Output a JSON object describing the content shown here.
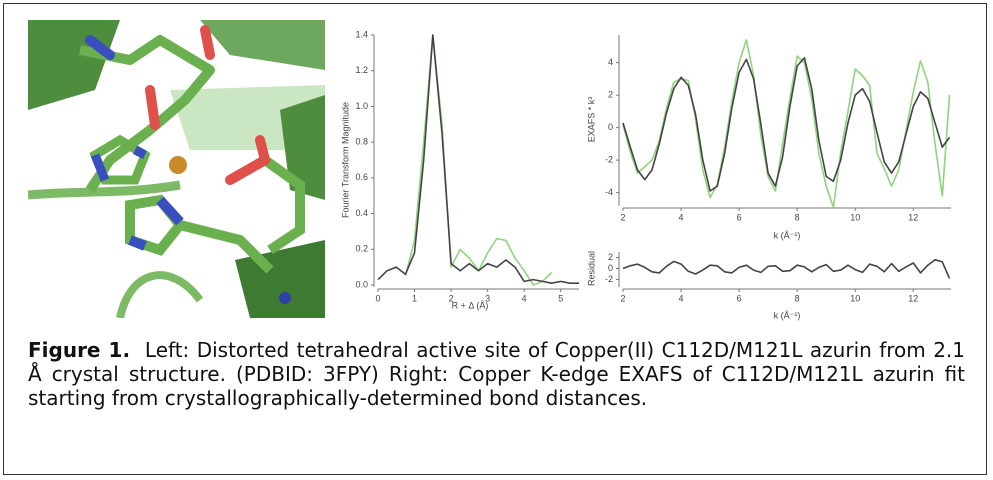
{
  "chart_data": [
    {
      "type": "line",
      "ylabel": "Fourier Transform Magnitude",
      "xlabel": "R + Δ (Å)",
      "x": [
        0,
        0.25,
        0.5,
        0.75,
        1,
        1.25,
        1.5,
        1.75,
        2,
        2.25,
        2.5,
        2.75,
        3,
        3.25,
        3.5,
        3.75,
        4,
        4.25,
        4.5,
        4.75,
        5,
        5.25,
        5.5
      ],
      "series": [
        {
          "color": "#8fd47c",
          "values": [
            null,
            null,
            null,
            0.05,
            0.25,
            0.8,
            1.4,
            0.9,
            0.1,
            0.2,
            0.15,
            0.08,
            0.18,
            0.26,
            0.25,
            0.15,
            0.08,
            0.0,
            0.02,
            0.07,
            null,
            null,
            null
          ]
        },
        {
          "color": "#444444",
          "values": [
            0.03,
            0.08,
            0.1,
            0.06,
            0.18,
            0.7,
            1.4,
            0.85,
            0.12,
            0.08,
            0.12,
            0.08,
            0.12,
            0.1,
            0.14,
            0.1,
            0.02,
            0.03,
            0.02,
            0.01,
            0.02,
            0.01,
            0.01
          ]
        }
      ],
      "xlim": [
        0,
        5.5
      ],
      "xticks": [
        0,
        1,
        2,
        3,
        4,
        5
      ],
      "ylim": [
        0,
        1.4
      ],
      "yticks": [
        {
          "value": 0,
          "label": "0.0"
        },
        {
          "value": 0.2,
          "label": "0.2"
        },
        {
          "value": 0.4,
          "label": "0.4"
        },
        {
          "value": 0.6,
          "label": "0.6"
        },
        {
          "value": 0.8,
          "label": "0.8"
        },
        {
          "value": 1,
          "label": "1.0"
        },
        {
          "value": 1.2,
          "label": "1.2"
        },
        {
          "value": 1.4,
          "label": "1.4"
        }
      ]
    },
    {
      "type": "line",
      "ylabel": "EXAFS * k³",
      "xlabel": "k (Å⁻¹)",
      "x": [
        2,
        2.25,
        2.5,
        2.75,
        3,
        3.25,
        3.5,
        3.75,
        4,
        4.25,
        4.5,
        4.75,
        5,
        5.25,
        5.5,
        5.75,
        6,
        6.25,
        6.5,
        6.75,
        7,
        7.25,
        7.5,
        7.75,
        8,
        8.25,
        8.5,
        8.75,
        9,
        9.25,
        9.5,
        9.75,
        10,
        10.25,
        10.5,
        10.75,
        11,
        11.25,
        11.5,
        11.75,
        12,
        12.25,
        12.5,
        12.75,
        13,
        13.25
      ],
      "series": [
        {
          "color": "#8fd47c",
          "values": [
            0.2,
            -1.5,
            -2.8,
            -2.4,
            -2.0,
            -0.8,
            1.2,
            2.8,
            3.0,
            2.9,
            0.5,
            -2.6,
            -4.3,
            -3.5,
            -1.2,
            1.6,
            4.0,
            5.4,
            3.2,
            -0.5,
            -3.0,
            -3.9,
            -1.0,
            1.8,
            4.4,
            4.0,
            1.8,
            -1.6,
            -3.6,
            -4.9,
            -1.5,
            1.0,
            3.6,
            3.2,
            2.6,
            -1.6,
            -2.5,
            -3.6,
            -2.6,
            -0.2,
            2.2,
            4.1,
            2.8,
            -1.0,
            -4.2,
            2.0
          ]
        },
        {
          "color": "#444444",
          "values": [
            0.3,
            -1.2,
            -2.6,
            -3.2,
            -2.6,
            -1.0,
            0.9,
            2.4,
            3.1,
            2.6,
            0.8,
            -2.0,
            -3.9,
            -3.6,
            -1.6,
            1.2,
            3.4,
            4.2,
            3.0,
            0.2,
            -2.8,
            -3.6,
            -1.8,
            1.3,
            3.8,
            4.3,
            2.4,
            -0.8,
            -3.0,
            -3.3,
            -2.0,
            0.3,
            2.0,
            2.4,
            1.6,
            -0.3,
            -2.1,
            -2.8,
            -2.1,
            -0.4,
            1.3,
            2.2,
            1.8,
            0.3,
            -1.2,
            -0.6
          ]
        }
      ],
      "xlim": [
        2,
        13.3
      ],
      "xticks": [
        2,
        4,
        6,
        8,
        10,
        12
      ],
      "ylim": [
        -4.7,
        5.7
      ],
      "yticks": [
        -4,
        -2,
        0,
        2,
        4
      ]
    },
    {
      "type": "line",
      "ylabel": "Residual",
      "xlabel": "k (Å⁻¹)",
      "x": [
        2,
        2.25,
        2.5,
        2.75,
        3,
        3.25,
        3.5,
        3.75,
        4,
        4.25,
        4.5,
        4.75,
        5,
        5.25,
        5.5,
        5.75,
        6,
        6.25,
        6.5,
        6.75,
        7,
        7.25,
        7.5,
        7.75,
        8,
        8.25,
        8.5,
        8.75,
        9,
        9.25,
        9.5,
        9.75,
        10,
        10.25,
        10.5,
        10.75,
        11,
        11.25,
        11.5,
        11.75,
        12,
        12.25,
        12.5,
        12.75,
        13,
        13.25
      ],
      "series": [
        {
          "color": "#444444",
          "values": [
            0,
            0.5,
            0.8,
            0.2,
            -0.6,
            -0.8,
            0.4,
            1.3,
            0.8,
            -0.5,
            -1.0,
            -0.3,
            0.6,
            0.5,
            -0.6,
            -0.8,
            0.2,
            0.6,
            -0.3,
            -0.7,
            0.4,
            0.5,
            -0.5,
            -0.4,
            0.6,
            0.3,
            -0.6,
            0.2,
            0.7,
            -0.5,
            -0.3,
            0.6,
            -0.2,
            -0.7,
            0.8,
            0.4,
            -0.6,
            0.9,
            -0.5,
            0.3,
            1.0,
            -0.8,
            0.6,
            1.6,
            1.2,
            -1.8
          ]
        }
      ],
      "xlim": [
        2,
        13.3
      ],
      "xticks": [
        2,
        4,
        6,
        8,
        10,
        12
      ],
      "ylim": [
        -3,
        3
      ],
      "yticks": [
        -2,
        0,
        2
      ]
    }
  ],
  "caption": {
    "label": "Figure 1.",
    "text": "Left: Distorted tetrahedral active site of Copper(II) C112D/M121L azurin from 2.1 Å crystal structure. (PDBID: 3FPY) Right: Copper K-edge EXAFS of C112D/M121L azurin fit starting from crystallographically-determined bond distances."
  }
}
